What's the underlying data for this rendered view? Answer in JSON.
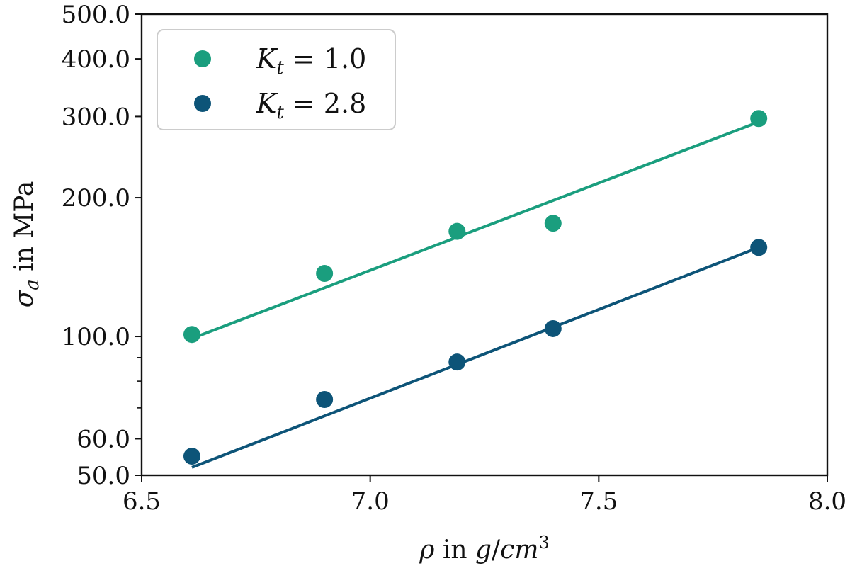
{
  "chart_data": {
    "type": "scatter",
    "title": "",
    "xlabel": "ρ in g/cm³",
    "ylabel": "σa in MPa",
    "xlim": [
      6.5,
      8.0
    ],
    "ylim": [
      50,
      500
    ],
    "y_scale": "log",
    "grid": false,
    "legend_position": "top-left",
    "x_ticks": [
      6.5,
      7.0,
      7.5,
      8.0
    ],
    "x_tick_labels": [
      "6.5",
      "7.0",
      "7.5",
      "8.0"
    ],
    "y_ticks": [
      50,
      60,
      100,
      200,
      300,
      400,
      500
    ],
    "y_tick_labels": [
      "50.0",
      "60.0",
      "100.0",
      "200.0",
      "300.0",
      "400.0",
      "500.0"
    ],
    "y_minor_ticks": [
      70,
      80,
      90
    ],
    "series": [
      {
        "name": "Kt = 1.0",
        "legend_main": "K",
        "legend_sub": "t",
        "legend_rest": " = 1.0",
        "color": "#1a9e7e",
        "x": [
          6.61,
          6.9,
          7.19,
          7.4,
          7.85
        ],
        "y": [
          101,
          137,
          169,
          176,
          297
        ],
        "fit_x": [
          6.61,
          7.85
        ],
        "fit_y": [
          99,
          292
        ]
      },
      {
        "name": "Kt = 2.8",
        "legend_main": "K",
        "legend_sub": "t",
        "legend_rest": " = 2.8",
        "color": "#0d5478",
        "x": [
          6.61,
          6.9,
          7.19,
          7.4,
          7.85
        ],
        "y": [
          55,
          73,
          88,
          104,
          156
        ],
        "fit_x": [
          6.61,
          7.85
        ],
        "fit_y": [
          52,
          156
        ]
      }
    ]
  }
}
